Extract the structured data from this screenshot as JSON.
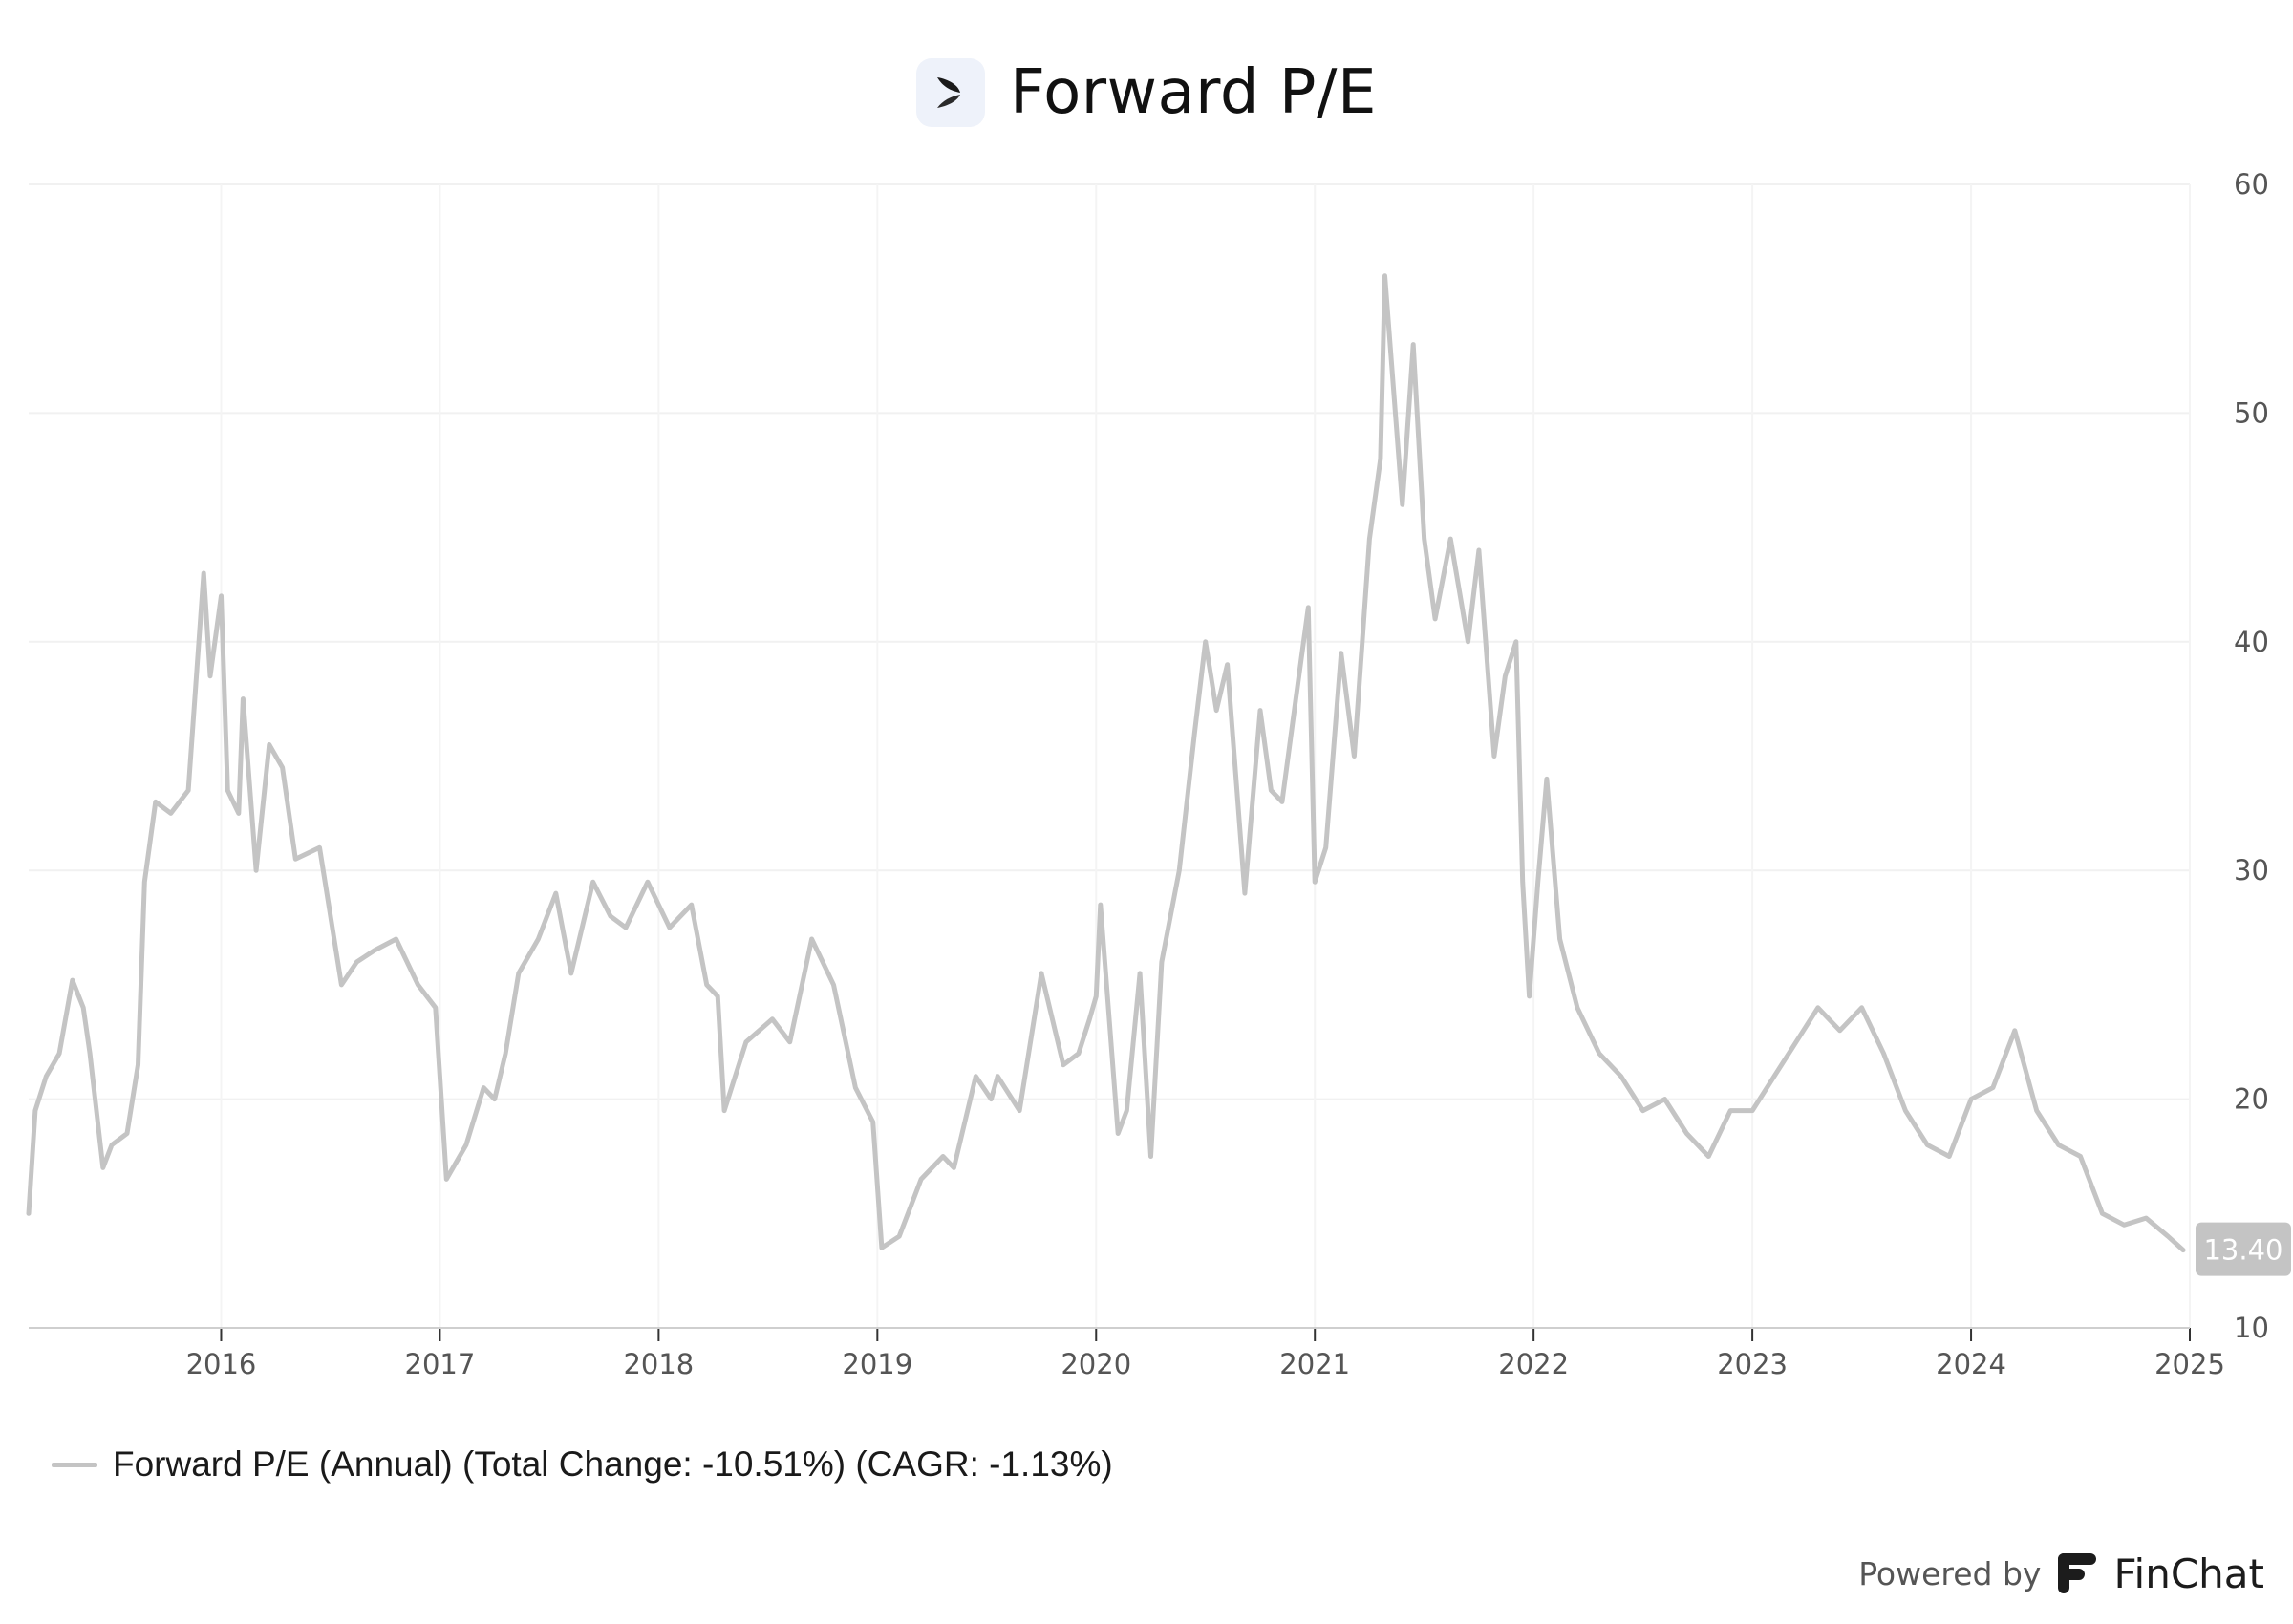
{
  "header": {
    "title": "Forward P/E",
    "logo_icon": "company-logo-icon"
  },
  "legend": {
    "label": "Forward P/E (Annual) (Total Change: -10.51%) (CAGR: -1.13%)",
    "color": "#c4c4c4"
  },
  "footer": {
    "powered_by": "Powered by",
    "brand": "FinChat",
    "brand_icon": "finchat-logo-icon"
  },
  "last_value_label": "13.40",
  "chart_data": {
    "type": "line",
    "title": "Forward P/E",
    "ylim": [
      10,
      60
    ],
    "yticks": [
      10,
      20,
      30,
      40,
      50,
      60
    ],
    "xlim": [
      2015.12,
      2025.0
    ],
    "xticks": [
      "2016",
      "2017",
      "2018",
      "2019",
      "2020",
      "2021",
      "2022",
      "2023",
      "2024",
      "2025"
    ],
    "grid": true,
    "legend_position": "bottom-left",
    "series": [
      {
        "name": "Forward P/E (Annual) (Total Change: -10.51%) (CAGR: -1.13%)",
        "color": "#c4c4c4",
        "x": [
          2015.12,
          2015.15,
          2015.2,
          2015.26,
          2015.32,
          2015.37,
          2015.4,
          2015.46,
          2015.5,
          2015.57,
          2015.62,
          2015.65,
          2015.7,
          2015.77,
          2015.85,
          2015.92,
          2015.95,
          2016.0,
          2016.03,
          2016.08,
          2016.1,
          2016.16,
          2016.22,
          2016.28,
          2016.34,
          2016.45,
          2016.55,
          2016.62,
          2016.7,
          2016.8,
          2016.9,
          2016.98,
          2017.03,
          2017.12,
          2017.2,
          2017.25,
          2017.3,
          2017.36,
          2017.45,
          2017.53,
          2017.6,
          2017.7,
          2017.78,
          2017.85,
          2017.95,
          2018.05,
          2018.15,
          2018.22,
          2018.27,
          2018.3,
          2018.4,
          2018.52,
          2018.6,
          2018.7,
          2018.8,
          2018.9,
          2018.98,
          2019.02,
          2019.1,
          2019.2,
          2019.3,
          2019.35,
          2019.45,
          2019.52,
          2019.55,
          2019.65,
          2019.75,
          2019.85,
          2019.92,
          2019.97,
          2020.0,
          2020.02,
          2020.1,
          2020.14,
          2020.2,
          2020.25,
          2020.3,
          2020.38,
          2020.45,
          2020.5,
          2020.55,
          2020.6,
          2020.68,
          2020.75,
          2020.8,
          2020.85,
          2020.92,
          2020.97,
          2021.0,
          2021.05,
          2021.12,
          2021.18,
          2021.25,
          2021.3,
          2021.32,
          2021.4,
          2021.45,
          2021.5,
          2021.55,
          2021.62,
          2021.7,
          2021.75,
          2021.82,
          2021.87,
          2021.92,
          2021.95,
          2021.98,
          2022.02,
          2022.06,
          2022.12,
          2022.2,
          2022.3,
          2022.4,
          2022.5,
          2022.6,
          2022.7,
          2022.8,
          2022.9,
          2023.0,
          2023.1,
          2023.2,
          2023.3,
          2023.4,
          2023.5,
          2023.6,
          2023.7,
          2023.8,
          2023.9,
          2024.0,
          2024.1,
          2024.2,
          2024.3,
          2024.4,
          2024.5,
          2024.6,
          2024.7,
          2024.8,
          2024.9,
          2024.97
        ],
        "values": [
          15.0,
          19.5,
          21.0,
          22.0,
          25.2,
          24.0,
          22.0,
          17.0,
          18.0,
          18.5,
          21.5,
          29.5,
          33.0,
          32.5,
          33.5,
          43.0,
          38.5,
          42.0,
          33.5,
          32.5,
          37.5,
          30.0,
          35.5,
          34.5,
          30.5,
          31.0,
          25.0,
          26.0,
          26.5,
          27.0,
          25.0,
          24.0,
          16.5,
          18.0,
          20.5,
          20.0,
          22.0,
          25.5,
          27.0,
          29.0,
          25.5,
          29.5,
          28.0,
          27.5,
          29.5,
          27.5,
          28.5,
          25.0,
          24.5,
          19.5,
          22.5,
          23.5,
          22.5,
          27.0,
          25.0,
          20.5,
          19.0,
          13.5,
          14.0,
          16.5,
          17.5,
          17.0,
          21.0,
          20.0,
          21.0,
          19.5,
          25.5,
          21.5,
          22.0,
          23.5,
          24.5,
          28.5,
          18.5,
          19.5,
          25.5,
          17.5,
          26.0,
          30.0,
          36.0,
          40.0,
          37.0,
          39.0,
          29.0,
          37.0,
          33.5,
          33.0,
          38.0,
          41.5,
          29.5,
          31.0,
          39.5,
          35.0,
          44.5,
          48.0,
          56.0,
          46.0,
          53.0,
          44.5,
          41.0,
          44.5,
          40.0,
          44.0,
          35.0,
          38.5,
          40.0,
          29.5,
          24.5,
          29.5,
          34.0,
          27.0,
          24.0,
          22.0,
          21.0,
          19.5,
          20.0,
          18.5,
          17.5,
          19.5,
          19.5,
          21.0,
          22.5,
          24.0,
          23.0,
          24.0,
          22.0,
          19.5,
          18.0,
          17.5,
          20.0,
          20.5,
          23.0,
          19.5,
          18.0,
          17.5,
          15.0,
          14.5,
          14.8,
          14.0,
          13.4
        ]
      }
    ]
  }
}
